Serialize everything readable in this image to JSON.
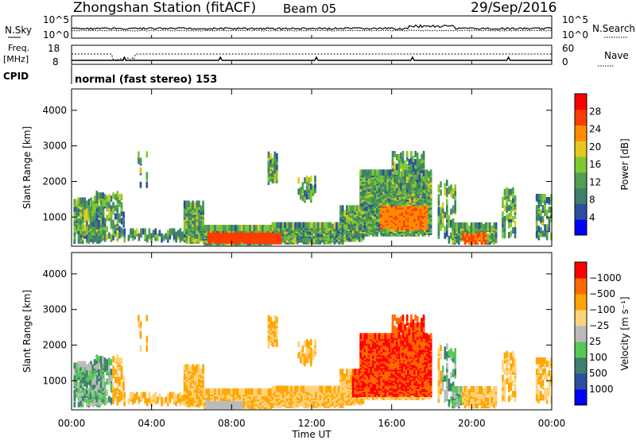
{
  "header": {
    "title": "Zhongshan Station (fitACF)",
    "beam": "Beam 05",
    "date": "29/Sep/2016"
  },
  "summary": {
    "left_labels": {
      "nsky": "N.Sky",
      "freq": "Freq.",
      "freq_unit": "[MHz]",
      "cpid": "CPID"
    },
    "right_labels": {
      "nsearch": "N.Search",
      "nave": "Nave"
    },
    "noise_left_ticks": [
      "10^5",
      "10^0"
    ],
    "noise_right_ticks": [
      "10^5",
      "10^0"
    ],
    "freq_left_ticks": [
      "18",
      "8"
    ],
    "nave_right_ticks": [
      "60",
      "0"
    ],
    "cpid_text": "normal (fast stereo) 153"
  },
  "chart_data": [
    {
      "type": "heatmap",
      "title": "",
      "xlabel": "Time UT",
      "ylabel": "Slant Range [km]",
      "x_tick_labels": [
        "00:00",
        "04:00",
        "08:00",
        "12:00",
        "16:00",
        "20:00",
        "00:00"
      ],
      "x_range_hours": [
        0,
        24
      ],
      "y_range_km": [
        180,
        4600
      ],
      "y_tick_labels": [
        "1000",
        "2000",
        "3000",
        "4000"
      ],
      "colorbar": {
        "label": "Power [dB]",
        "range": [
          0,
          30
        ],
        "tick_labels": [
          "4",
          "8",
          "12",
          "16",
          "20",
          "24",
          "28"
        ],
        "colors": [
          "#0000ff",
          "#2a4fa0",
          "#3d7f6c",
          "#4fa04f",
          "#7fc832",
          "#e6c81e",
          "#ff8c00",
          "#ff3c00",
          "#ff0000"
        ]
      }
    },
    {
      "type": "heatmap",
      "title": "",
      "xlabel": "Time UT",
      "ylabel": "Slant Range [km]",
      "x_tick_labels": [
        "00:00",
        "04:00",
        "08:00",
        "12:00",
        "16:00",
        "20:00",
        "00:00"
      ],
      "x_range_hours": [
        0,
        24
      ],
      "y_range_km": [
        180,
        4600
      ],
      "y_tick_labels": [
        "1000",
        "2000",
        "3000",
        "4000"
      ],
      "colorbar": {
        "label": "Velocity [m s⁻¹]",
        "tick_labels": [
          "1000",
          "500",
          "100",
          "25",
          "−25",
          "−100",
          "−500",
          "−1000"
        ],
        "colors": [
          "#0000ff",
          "#2a4fa0",
          "#3d7f6c",
          "#55c855",
          "#bbbbbb",
          "#ffd37a",
          "#ffa500",
          "#ff6a00",
          "#ff0000"
        ]
      }
    }
  ]
}
